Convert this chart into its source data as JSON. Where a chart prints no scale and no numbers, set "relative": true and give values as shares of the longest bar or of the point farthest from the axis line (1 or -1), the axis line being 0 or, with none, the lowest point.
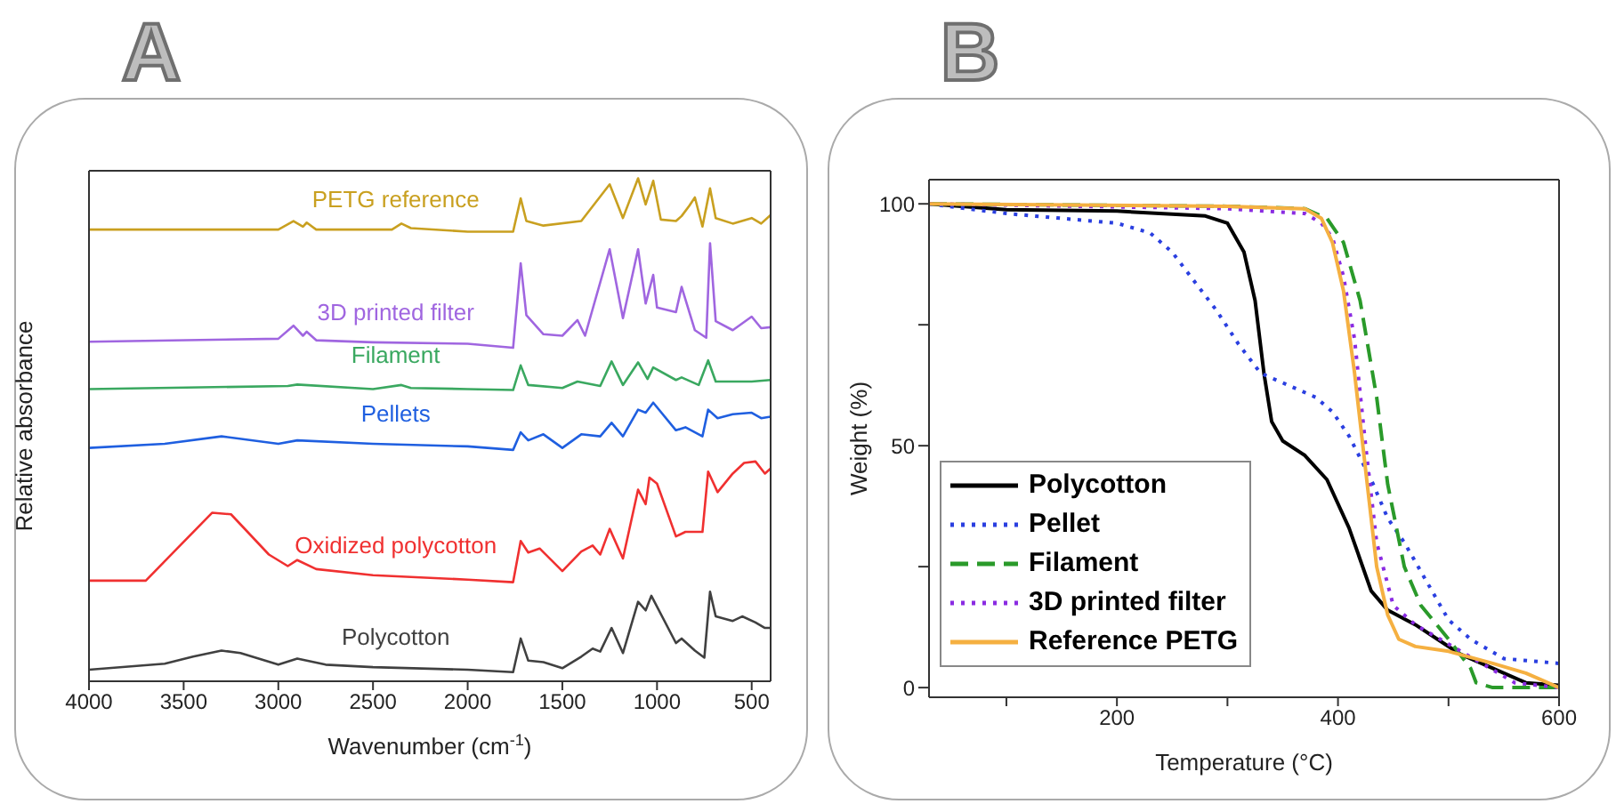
{
  "chart_data": [
    {
      "type": "line",
      "title": "A",
      "xlabel": "Wavenumber (cm$^{-1}$)",
      "ylabel": "Relative absorbance",
      "relative": true,
      "xlim": [
        4000,
        400
      ],
      "xticks": [
        4000,
        3500,
        3000,
        2500,
        2000,
        1500,
        1000,
        500
      ],
      "series": [
        {
          "name": "Polycotton",
          "color": "#404040",
          "x": [
            4000,
            3600,
            3450,
            3300,
            3200,
            3000,
            2900,
            2750,
            2500,
            2000,
            1760,
            1720,
            1680,
            1600,
            1500,
            1400,
            1340,
            1300,
            1240,
            1180,
            1100,
            1060,
            1030,
            900,
            870,
            800,
            750,
            720,
            690,
            600,
            550,
            480,
            430,
            400
          ],
          "values": [
            0.023,
            0.035,
            0.049,
            0.061,
            0.056,
            0.033,
            0.045,
            0.033,
            0.028,
            0.023,
            0.018,
            0.085,
            0.041,
            0.038,
            0.026,
            0.049,
            0.065,
            0.059,
            0.106,
            0.056,
            0.158,
            0.141,
            0.17,
            0.076,
            0.085,
            0.061,
            0.047,
            0.178,
            0.129,
            0.12,
            0.129,
            0.117,
            0.106,
            0.106
          ]
        },
        {
          "name": "Oxidized polycotton",
          "color": "#f03030",
          "x": [
            4000,
            3700,
            3550,
            3350,
            3250,
            3050,
            2950,
            2900,
            2800,
            2500,
            2000,
            1760,
            1720,
            1680,
            1620,
            1500,
            1400,
            1340,
            1300,
            1250,
            1180,
            1100,
            1060,
            1040,
            1000,
            900,
            850,
            760,
            730,
            680,
            600,
            540,
            480,
            430,
            400
          ],
          "values": [
            0.2,
            0.2,
            0.258,
            0.335,
            0.332,
            0.252,
            0.229,
            0.241,
            0.223,
            0.211,
            0.202,
            0.197,
            0.279,
            0.256,
            0.264,
            0.219,
            0.258,
            0.27,
            0.252,
            0.303,
            0.244,
            0.381,
            0.352,
            0.405,
            0.393,
            0.288,
            0.297,
            0.297,
            0.417,
            0.376,
            0.413,
            0.434,
            0.437,
            0.413,
            0.423
          ]
        },
        {
          "name": "Pellets",
          "color": "#1f5fe0",
          "x": [
            4000,
            3600,
            3300,
            3000,
            2900,
            2500,
            2000,
            1760,
            1720,
            1680,
            1600,
            1500,
            1400,
            1300,
            1240,
            1180,
            1100,
            1060,
            1020,
            900,
            850,
            760,
            730,
            680,
            600,
            500,
            450,
            400
          ],
          "values": [
            0.464,
            0.472,
            0.487,
            0.472,
            0.479,
            0.472,
            0.467,
            0.46,
            0.495,
            0.479,
            0.491,
            0.464,
            0.491,
            0.487,
            0.514,
            0.487,
            0.54,
            0.534,
            0.554,
            0.499,
            0.505,
            0.487,
            0.54,
            0.523,
            0.531,
            0.534,
            0.523,
            0.526
          ]
        },
        {
          "name": "Filament",
          "color": "#3aa860",
          "x": [
            4000,
            2950,
            2900,
            2500,
            2350,
            2300,
            2000,
            1760,
            1720,
            1680,
            1500,
            1420,
            1300,
            1240,
            1180,
            1100,
            1050,
            1020,
            900,
            870,
            780,
            730,
            690,
            500,
            400
          ],
          "values": [
            0.581,
            0.587,
            0.59,
            0.581,
            0.589,
            0.583,
            0.581,
            0.579,
            0.628,
            0.589,
            0.583,
            0.596,
            0.587,
            0.636,
            0.589,
            0.634,
            0.601,
            0.624,
            0.599,
            0.604,
            0.589,
            0.638,
            0.596,
            0.596,
            0.599
          ]
        },
        {
          "name": "3D printed filter",
          "color": "#a066e0",
          "x": [
            4000,
            3000,
            2920,
            2870,
            2850,
            2800,
            2500,
            2000,
            1760,
            1720,
            1690,
            1600,
            1500,
            1420,
            1380,
            1250,
            1180,
            1100,
            1060,
            1020,
            1000,
            900,
            870,
            800,
            740,
            720,
            690,
            600,
            500,
            450,
            400
          ],
          "values": [
            0.675,
            0.681,
            0.707,
            0.687,
            0.695,
            0.678,
            0.674,
            0.671,
            0.663,
            0.831,
            0.728,
            0.69,
            0.687,
            0.718,
            0.687,
            0.859,
            0.722,
            0.859,
            0.751,
            0.808,
            0.743,
            0.734,
            0.784,
            0.698,
            0.683,
            0.871,
            0.716,
            0.698,
            0.725,
            0.702,
            0.704
          ]
        },
        {
          "name": "PETG reference",
          "color": "#c9a020",
          "x": [
            4000,
            3000,
            2920,
            2870,
            2850,
            2800,
            2400,
            2350,
            2300,
            2000,
            1760,
            1720,
            1690,
            1600,
            1400,
            1250,
            1180,
            1100,
            1060,
            1020,
            980,
            900,
            870,
            830,
            800,
            760,
            720,
            690,
            600,
            500,
            450,
            400
          ],
          "values": [
            0.898,
            0.898,
            0.915,
            0.904,
            0.912,
            0.898,
            0.898,
            0.91,
            0.901,
            0.894,
            0.894,
            0.96,
            0.915,
            0.906,
            0.915,
            0.988,
            0.921,
            1.0,
            0.948,
            0.995,
            0.918,
            0.915,
            0.925,
            0.945,
            0.962,
            0.904,
            0.98,
            0.921,
            0.91,
            0.921,
            0.91,
            0.927
          ]
        }
      ]
    },
    {
      "type": "line",
      "title": "B",
      "xlabel": "Temperature (°C)",
      "ylabel": "Weight (%)",
      "xlim": [
        30,
        600
      ],
      "xticks": [
        {
          "value": 100,
          "label": null
        },
        200,
        {
          "value": 300,
          "label": null
        },
        400,
        {
          "value": 500,
          "label": null
        },
        600
      ],
      "ylim": [
        -2,
        105
      ],
      "yticks": [
        0,
        {
          "value": 25,
          "label": null
        },
        50,
        {
          "value": 75,
          "label": null
        },
        100
      ],
      "legend": "bottom left",
      "series": [
        {
          "name": "Polycotton",
          "color": "#000000",
          "line_style": "solid",
          "x": [
            30,
            100,
            200,
            280,
            300,
            315,
            325,
            333,
            340,
            350,
            370,
            390,
            410,
            430,
            445,
            470,
            490,
            510,
            540,
            570,
            600
          ],
          "values": [
            100,
            98.8,
            98.5,
            97.5,
            96,
            90,
            80,
            65,
            55,
            51,
            48,
            43,
            33,
            20,
            16,
            13,
            10,
            7,
            4,
            1,
            0.5
          ]
        },
        {
          "name": "Pellet",
          "color": "#2a3fe0",
          "line_style": "dotted",
          "x": [
            30,
            100,
            200,
            230,
            250,
            270,
            290,
            310,
            330,
            360,
            380,
            395,
            410,
            430,
            445,
            460,
            480,
            500,
            520,
            550,
            600
          ],
          "values": [
            100,
            98,
            96,
            94,
            90,
            84,
            78,
            71,
            65,
            62,
            60,
            57,
            52,
            43,
            35,
            30,
            22,
            14,
            10,
            6,
            5
          ]
        },
        {
          "name": "Filament",
          "color": "#2a9a2a",
          "line_style": "dashed",
          "x": [
            30,
            300,
            370,
            390,
            405,
            420,
            435,
            445,
            460,
            475,
            500,
            520,
            525,
            540,
            600
          ],
          "values": [
            100,
            99.5,
            99,
            97,
            92,
            80,
            60,
            42,
            25,
            17,
            10,
            4,
            1,
            0,
            0
          ]
        },
        {
          "name": "3D printed filter",
          "color": "#8a2be2",
          "line_style": "dotted",
          "x": [
            30,
            300,
            370,
            385,
            395,
            405,
            415,
            425,
            435,
            450,
            470,
            500,
            530,
            560,
            600
          ],
          "values": [
            100,
            99,
            98,
            96,
            93,
            85,
            72,
            50,
            30,
            17,
            13,
            9,
            5,
            1,
            0
          ]
        },
        {
          "name": "Reference PETG",
          "color": "#f5b041",
          "line_style": "solid",
          "x": [
            30,
            300,
            370,
            385,
            395,
            405,
            415,
            425,
            435,
            445,
            455,
            470,
            500,
            540,
            570,
            600
          ],
          "values": [
            100,
            99.5,
            99,
            97,
            92,
            82,
            65,
            45,
            25,
            15,
            10,
            8.5,
            7.5,
            5,
            3,
            0
          ]
        }
      ]
    }
  ]
}
